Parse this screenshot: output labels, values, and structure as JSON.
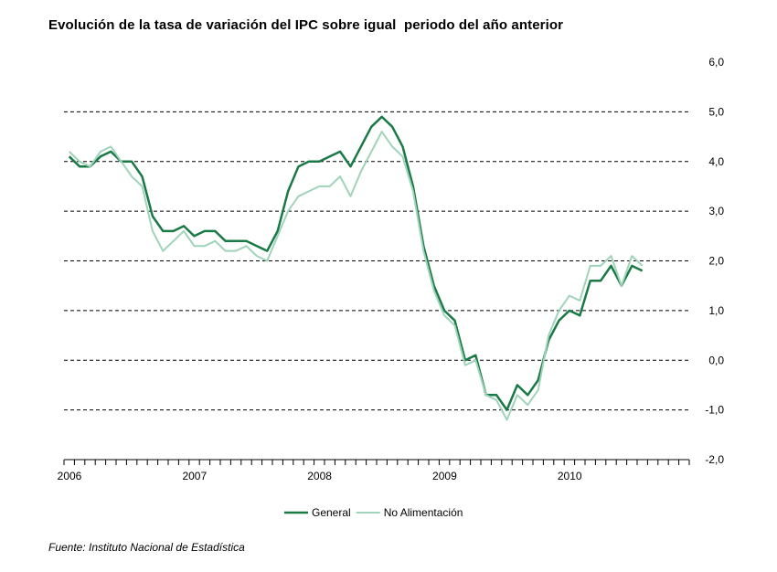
{
  "title": "Evolución de la tasa de variación del IPC sobre igual  periodo del año anterior",
  "source": "Fuente: Instituto Nacional de Estadística",
  "chart_data": {
    "type": "line",
    "title": "Evolución de la tasa de variación del IPC sobre igual  periodo del año anterior",
    "xlabel": "",
    "ylabel": "",
    "x_start": "2006-01",
    "x": [
      "2006-01",
      "2006-02",
      "2006-03",
      "2006-04",
      "2006-05",
      "2006-06",
      "2006-07",
      "2006-08",
      "2006-09",
      "2006-10",
      "2006-11",
      "2006-12",
      "2007-01",
      "2007-02",
      "2007-03",
      "2007-04",
      "2007-05",
      "2007-06",
      "2007-07",
      "2007-08",
      "2007-09",
      "2007-10",
      "2007-11",
      "2007-12",
      "2008-01",
      "2008-02",
      "2008-03",
      "2008-04",
      "2008-05",
      "2008-06",
      "2008-07",
      "2008-08",
      "2008-09",
      "2008-10",
      "2008-11",
      "2008-12",
      "2009-01",
      "2009-02",
      "2009-03",
      "2009-04",
      "2009-05",
      "2009-06",
      "2009-07",
      "2009-08",
      "2009-09",
      "2009-10",
      "2009-11",
      "2009-12",
      "2010-01",
      "2010-02",
      "2010-03",
      "2010-04",
      "2010-05",
      "2010-06",
      "2010-07",
      "2010-08"
    ],
    "x_tick_labels": [
      "2006",
      "2007",
      "2008",
      "2009",
      "2010"
    ],
    "x_tick_count": 60,
    "y_ticks": [
      "6,0",
      "5,0",
      "4,0",
      "3,0",
      "2,0",
      "1,0",
      "0,0",
      "-1,0",
      "-2,0"
    ],
    "ylim": [
      -2,
      6
    ],
    "grid": "horizontal dashed",
    "legend_position": "bottom",
    "series": [
      {
        "name": "General",
        "color": "#1a7a45",
        "values": [
          4.1,
          3.9,
          3.9,
          4.1,
          4.2,
          4.0,
          4.0,
          3.7,
          2.9,
          2.6,
          2.6,
          2.7,
          2.5,
          2.6,
          2.6,
          2.4,
          2.4,
          2.4,
          2.3,
          2.2,
          2.6,
          3.4,
          3.9,
          4.0,
          4.0,
          4.1,
          4.2,
          3.9,
          4.3,
          4.7,
          4.9,
          4.7,
          4.3,
          3.5,
          2.3,
          1.5,
          1.0,
          0.8,
          0.0,
          0.1,
          -0.7,
          -0.7,
          -1.0,
          -0.5,
          -0.7,
          -0.4,
          0.4,
          0.8,
          1.0,
          0.9,
          1.6,
          1.6,
          1.9,
          1.5,
          1.9,
          1.8
        ]
      },
      {
        "name": "No Alimentación",
        "color": "#9fd4ba",
        "values": [
          4.2,
          4.0,
          3.9,
          4.2,
          4.3,
          4.0,
          3.7,
          3.5,
          2.6,
          2.2,
          2.4,
          2.6,
          2.3,
          2.3,
          2.4,
          2.2,
          2.2,
          2.3,
          2.1,
          2.0,
          2.5,
          3.0,
          3.3,
          3.4,
          3.5,
          3.5,
          3.7,
          3.3,
          3.8,
          4.2,
          4.6,
          4.3,
          4.1,
          3.4,
          2.2,
          1.4,
          0.9,
          0.7,
          -0.1,
          0.0,
          -0.7,
          -0.8,
          -1.2,
          -0.7,
          -0.9,
          -0.6,
          0.5,
          1.0,
          1.3,
          1.2,
          1.9,
          1.9,
          2.1,
          1.5,
          2.1,
          1.9
        ]
      }
    ]
  }
}
